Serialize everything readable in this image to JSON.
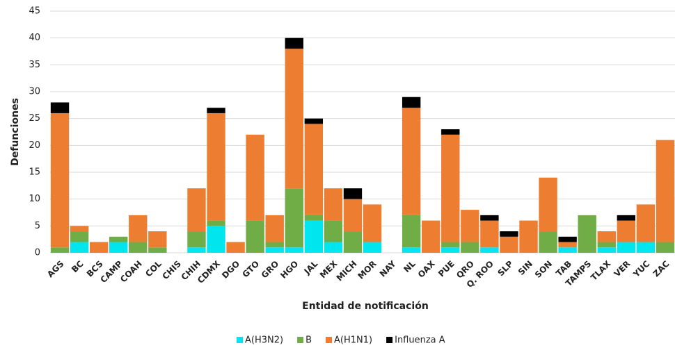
{
  "chart_data": {
    "type": "stacked_bar",
    "x_label": "Entidad de notificación",
    "y_label": "Defunciones",
    "categories": [
      "AGS",
      "BC",
      "BCS",
      "CAMP",
      "COAH",
      "COL",
      "CHIS",
      "CHIH",
      "CDMX",
      "DGO",
      "GTO",
      "GRO",
      "HGO",
      "JAL",
      "MEX",
      "MICH",
      "MOR",
      "NAY",
      "NL",
      "OAX",
      "PUE",
      "QRO",
      "Q. ROO",
      "SLP",
      "SIN",
      "SON",
      "TAB",
      "TAMPS",
      "TLAX",
      "VER",
      "YUC",
      "ZAC"
    ],
    "series": [
      {
        "name": "A(H3N2)",
        "color": "#00e5ee",
        "values": [
          0,
          2,
          0,
          2,
          0,
          0,
          0,
          1,
          5,
          0,
          0,
          1,
          1,
          6,
          2,
          0,
          2,
          0,
          1,
          0,
          1,
          0,
          1,
          0,
          0,
          0,
          1,
          0,
          1,
          2,
          2,
          0
        ]
      },
      {
        "name": "B",
        "color": "#70ad47",
        "values": [
          1,
          2,
          0,
          1,
          2,
          1,
          0,
          3,
          1,
          0,
          6,
          1,
          11,
          1,
          4,
          4,
          0,
          0,
          6,
          0,
          1,
          2,
          0,
          0,
          0,
          4,
          0,
          7,
          1,
          0,
          0,
          2
        ]
      },
      {
        "name": "A(H1N1)",
        "color": "#ed7d31",
        "values": [
          25,
          1,
          2,
          0,
          5,
          3,
          0,
          8,
          20,
          2,
          16,
          5,
          26,
          17,
          6,
          6,
          7,
          0,
          20,
          6,
          20,
          6,
          5,
          3,
          6,
          10,
          1,
          0,
          2,
          4,
          7,
          19
        ]
      },
      {
        "name": "Influenza A",
        "color": "#000000",
        "values": [
          2,
          0,
          0,
          0,
          0,
          0,
          0,
          0,
          1,
          0,
          0,
          0,
          2,
          1,
          0,
          2,
          0,
          0,
          2,
          0,
          1,
          0,
          1,
          1,
          0,
          0,
          1,
          0,
          0,
          1,
          0,
          0
        ]
      }
    ],
    "ylim": [
      0,
      45
    ],
    "yticks": [
      0,
      5,
      10,
      15,
      20,
      25,
      30,
      35,
      40,
      45
    ],
    "grid": true,
    "legend": "bottom"
  }
}
